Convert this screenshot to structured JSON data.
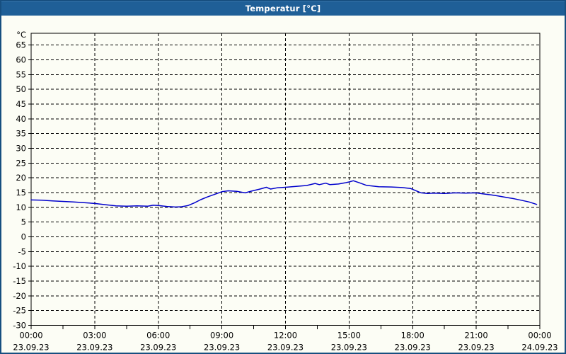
{
  "window": {
    "title": "Temperatur [°C]"
  },
  "colors": {
    "titlebar": "#1f5f97",
    "window_border": "#174f80",
    "background": "#fcfdf5",
    "grid": "#000000",
    "axis": "#000000",
    "label_text": "#000000",
    "title_text": "#ffffff",
    "series": "#0000cc"
  },
  "chart_data": {
    "type": "line",
    "title": "Temperatur [°C]",
    "y_unit_label": "°C",
    "ylim": [
      -30,
      69
    ],
    "ytick_min": -30,
    "ytick_max": 65,
    "ytick_step": 5,
    "grid": "dashed",
    "legend": "none",
    "x_axis": {
      "hours_range": [
        0,
        24
      ],
      "major_tick_hours": 3,
      "minor_tick_hours": 1.5,
      "tick_labels": [
        {
          "hour": 0,
          "time": "00:00",
          "date": "23.09.23"
        },
        {
          "hour": 3,
          "time": "03:00",
          "date": "23.09.23"
        },
        {
          "hour": 6,
          "time": "06:00",
          "date": "23.09.23"
        },
        {
          "hour": 9,
          "time": "09:00",
          "date": "23.09.23"
        },
        {
          "hour": 12,
          "time": "12:00",
          "date": "23.09.23"
        },
        {
          "hour": 15,
          "time": "15:00",
          "date": "23.09.23"
        },
        {
          "hour": 18,
          "time": "18:00",
          "date": "23.09.23"
        },
        {
          "hour": 21,
          "time": "21:00",
          "date": "23.09.23"
        },
        {
          "hour": 24,
          "time": "00:00",
          "date": "24.09.23"
        }
      ]
    },
    "series": [
      {
        "name": "Temperatur",
        "color": "#0000cc",
        "points": [
          [
            0.0,
            12.5
          ],
          [
            0.5,
            12.4
          ],
          [
            1.0,
            12.2
          ],
          [
            1.5,
            12.0
          ],
          [
            2.0,
            11.8
          ],
          [
            2.5,
            11.6
          ],
          [
            3.0,
            11.3
          ],
          [
            3.5,
            10.9
          ],
          [
            4.0,
            10.5
          ],
          [
            4.5,
            10.4
          ],
          [
            5.0,
            10.5
          ],
          [
            5.5,
            10.4
          ],
          [
            5.75,
            10.7
          ],
          [
            6.0,
            10.6
          ],
          [
            6.4,
            10.3
          ],
          [
            6.8,
            10.1
          ],
          [
            7.1,
            10.2
          ],
          [
            7.4,
            10.6
          ],
          [
            7.7,
            11.5
          ],
          [
            8.0,
            12.6
          ],
          [
            8.3,
            13.5
          ],
          [
            8.7,
            14.5
          ],
          [
            9.0,
            15.3
          ],
          [
            9.3,
            15.6
          ],
          [
            9.7,
            15.4
          ],
          [
            10.1,
            14.9
          ],
          [
            10.4,
            15.5
          ],
          [
            10.8,
            16.2
          ],
          [
            11.1,
            16.8
          ],
          [
            11.3,
            16.2
          ],
          [
            11.6,
            16.6
          ],
          [
            12.0,
            16.8
          ],
          [
            12.5,
            17.1
          ],
          [
            13.0,
            17.4
          ],
          [
            13.4,
            18.1
          ],
          [
            13.6,
            17.7
          ],
          [
            13.9,
            18.2
          ],
          [
            14.1,
            17.7
          ],
          [
            14.5,
            17.9
          ],
          [
            14.8,
            18.3
          ],
          [
            15.0,
            18.6
          ],
          [
            15.2,
            19.0
          ],
          [
            15.5,
            18.3
          ],
          [
            15.8,
            17.5
          ],
          [
            16.0,
            17.3
          ],
          [
            16.4,
            17.0
          ],
          [
            17.0,
            16.9
          ],
          [
            17.5,
            16.7
          ],
          [
            17.9,
            16.4
          ],
          [
            18.1,
            15.8
          ],
          [
            18.4,
            14.9
          ],
          [
            18.7,
            14.7
          ],
          [
            19.0,
            14.8
          ],
          [
            19.5,
            14.7
          ],
          [
            20.0,
            14.9
          ],
          [
            20.5,
            14.8
          ],
          [
            21.0,
            14.9
          ],
          [
            21.3,
            14.6
          ],
          [
            21.7,
            14.2
          ],
          [
            22.0,
            13.9
          ],
          [
            22.4,
            13.4
          ],
          [
            22.8,
            12.9
          ],
          [
            23.2,
            12.3
          ],
          [
            23.5,
            11.8
          ],
          [
            23.85,
            11.0
          ]
        ]
      }
    ]
  }
}
